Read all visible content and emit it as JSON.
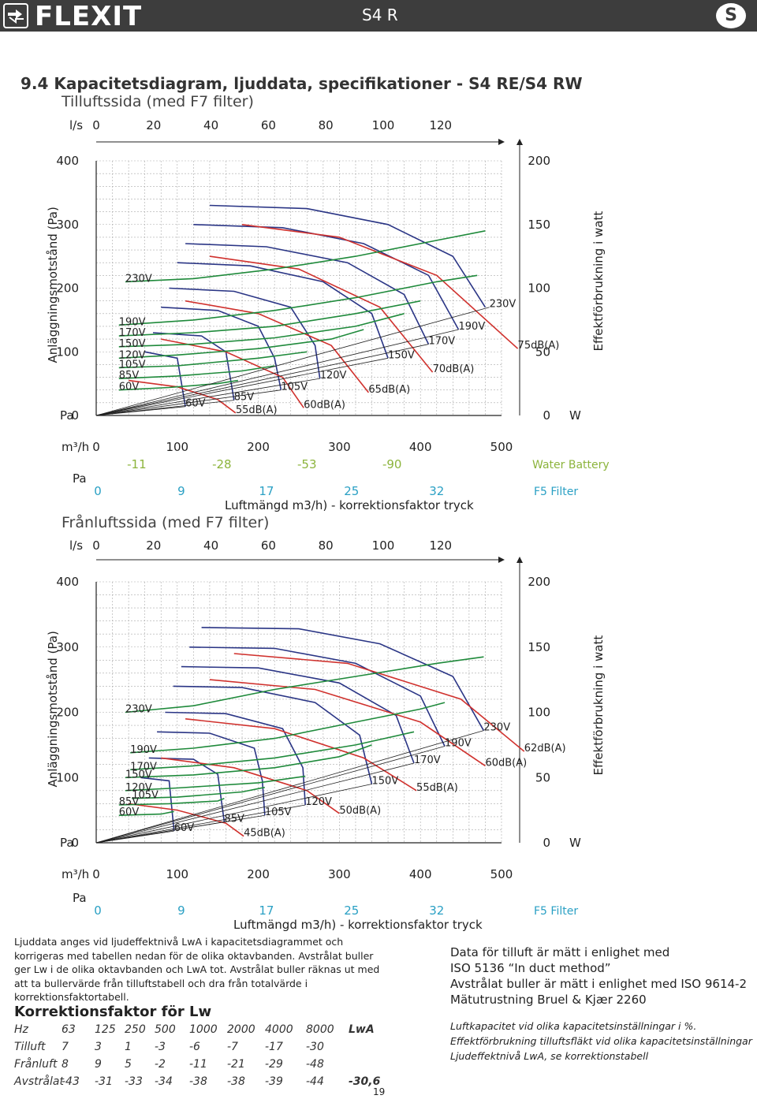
{
  "header": {
    "logo_text": "FLEXIT",
    "doc_title": "S4 R",
    "badge": "S"
  },
  "section_title": "9.4  Kapacitetsdiagram, ljuddata, specifikationer - S4 RE/S4 RW",
  "colors": {
    "voltage_curve": "#1f8a3b",
    "sound_curve": "#d0312d",
    "fan_curve": "#2a3585",
    "water_battery": "#8cb43c",
    "filter": "#2aa0c4",
    "header_bg": "#3d3d3d"
  },
  "chart_data": [
    {
      "type": "line",
      "title": "Tilluftssida (med F7 filter)",
      "ylabel": "Anläggningsmotstånd (Pa)",
      "y2label": "Effektförbrukning i watt",
      "xlabel": "Luftmängd m3/h) - korrektionsfaktor tryck",
      "x_unit": "m³/h",
      "x_ticks": [
        "0",
        "100",
        "200",
        "300",
        "400",
        "500"
      ],
      "x2_unit": "l/s",
      "x2_ticks": [
        "0",
        "20",
        "40",
        "60",
        "80",
        "100",
        "120"
      ],
      "y_unit": "Pa",
      "y_ticks": [
        "0",
        "100",
        "200",
        "300",
        "400"
      ],
      "y2_unit": "W",
      "y2_ticks": [
        "0",
        "50",
        "100",
        "150",
        "200"
      ],
      "xlim": [
        0,
        500
      ],
      "ylim": [
        0,
        400
      ],
      "voltage_labels": [
        {
          "text": "230V",
          "x": 36,
          "y": 210
        },
        {
          "text": "190V",
          "x": 28,
          "y": 142
        },
        {
          "text": "170V",
          "x": 28,
          "y": 125
        },
        {
          "text": "150V",
          "x": 28,
          "y": 108
        },
        {
          "text": "120V",
          "x": 28,
          "y": 90
        },
        {
          "text": "105V",
          "x": 28,
          "y": 75
        },
        {
          "text": "85V",
          "x": 28,
          "y": 58
        },
        {
          "text": "60V",
          "x": 28,
          "y": 40
        },
        {
          "text": "60V",
          "x": 110,
          "y": 14
        },
        {
          "text": "85V",
          "x": 170,
          "y": 24
        },
        {
          "text": "105V",
          "x": 228,
          "y": 40
        },
        {
          "text": "120V",
          "x": 276,
          "y": 58
        },
        {
          "text": "150V",
          "x": 360,
          "y": 90
        },
        {
          "text": "170V",
          "x": 410,
          "y": 112
        },
        {
          "text": "190V",
          "x": 447,
          "y": 135
        },
        {
          "text": "230V",
          "x": 485,
          "y": 170
        }
      ],
      "sound_labels": [
        {
          "text": "55dB(A)",
          "x": 172,
          "y": 4
        },
        {
          "text": "60dB(A)",
          "x": 256,
          "y": 12
        },
        {
          "text": "65dB(A)",
          "x": 336,
          "y": 36
        },
        {
          "text": "70dB(A)",
          "x": 415,
          "y": 68
        },
        {
          "text": "75dB(A)",
          "x": 520,
          "y": 105
        }
      ],
      "voltage_curves": [
        {
          "name": "230V",
          "x": [
            36,
            120,
            220,
            320,
            420,
            480
          ],
          "y": [
            210,
            215,
            230,
            250,
            275,
            290
          ]
        },
        {
          "name": "190V",
          "x": [
            28,
            120,
            220,
            320,
            420,
            470
          ],
          "y": [
            142,
            150,
            165,
            185,
            210,
            220
          ]
        },
        {
          "name": "170V",
          "x": [
            28,
            120,
            220,
            320,
            400
          ],
          "y": [
            125,
            130,
            140,
            160,
            180
          ]
        },
        {
          "name": "150V",
          "x": [
            28,
            120,
            220,
            320,
            380
          ],
          "y": [
            108,
            112,
            122,
            140,
            160
          ]
        },
        {
          "name": "120V",
          "x": [
            28,
            100,
            200,
            290,
            330
          ],
          "y": [
            90,
            95,
            105,
            120,
            135
          ]
        },
        {
          "name": "105V",
          "x": [
            28,
            100,
            200,
            260
          ],
          "y": [
            75,
            78,
            90,
            100
          ]
        },
        {
          "name": "85V",
          "x": [
            28,
            100,
            180,
            220
          ],
          "y": [
            58,
            62,
            70,
            78
          ]
        },
        {
          "name": "60V",
          "x": [
            28,
            90,
            150,
            175
          ],
          "y": [
            40,
            44,
            50,
            55
          ]
        }
      ],
      "fan_curves": [
        {
          "name": "230V",
          "x": [
            140,
            260,
            360,
            440,
            480
          ],
          "y": [
            330,
            325,
            300,
            250,
            170
          ]
        },
        {
          "name": "190V",
          "x": [
            120,
            230,
            330,
            410,
            447
          ],
          "y": [
            300,
            295,
            270,
            220,
            135
          ]
        },
        {
          "name": "170V",
          "x": [
            110,
            210,
            310,
            380,
            410
          ],
          "y": [
            270,
            265,
            240,
            190,
            112
          ]
        },
        {
          "name": "150V",
          "x": [
            100,
            190,
            280,
            340,
            360
          ],
          "y": [
            240,
            235,
            210,
            160,
            90
          ]
        },
        {
          "name": "120V",
          "x": [
            90,
            170,
            240,
            270,
            276
          ],
          "y": [
            200,
            195,
            170,
            110,
            58
          ]
        },
        {
          "name": "105V",
          "x": [
            80,
            150,
            200,
            220,
            228
          ],
          "y": [
            170,
            165,
            140,
            90,
            40
          ]
        },
        {
          "name": "85V",
          "x": [
            70,
            130,
            160,
            170
          ],
          "y": [
            130,
            125,
            100,
            24
          ]
        },
        {
          "name": "60V",
          "x": [
            60,
            100,
            110
          ],
          "y": [
            100,
            90,
            14
          ]
        }
      ],
      "sound_curves": [
        {
          "name": "55dB(A)",
          "x": [
            40,
            100,
            150,
            172
          ],
          "y": [
            55,
            45,
            25,
            4
          ]
        },
        {
          "name": "60dB(A)",
          "x": [
            80,
            160,
            230,
            256
          ],
          "y": [
            120,
            100,
            60,
            12
          ]
        },
        {
          "name": "65dB(A)",
          "x": [
            110,
            200,
            290,
            336
          ],
          "y": [
            180,
            160,
            110,
            36
          ]
        },
        {
          "name": "70dB(A)",
          "x": [
            140,
            250,
            350,
            415
          ],
          "y": [
            250,
            230,
            170,
            68
          ]
        },
        {
          "name": "75dB(A)",
          "x": [
            180,
            300,
            420,
            520
          ],
          "y": [
            300,
            280,
            220,
            105
          ]
        }
      ],
      "correction": {
        "water_battery_label": "Water Battery",
        "water_battery": [
          "-11",
          "-28",
          "-53",
          "-90"
        ],
        "filter_unit": "Pa",
        "filter_label": "F5 Filter",
        "filter": [
          "0",
          "9",
          "17",
          "25",
          "32"
        ]
      }
    },
    {
      "type": "line",
      "title": "Frånluftssida (med F7 filter)",
      "ylabel": "Anläggningsmotstånd (Pa)",
      "y2label": "Effektförbrukning i watt",
      "xlabel": "Luftmängd m3/h) - korrektionsfaktor tryck",
      "x_unit": "m³/h",
      "x_ticks": [
        "0",
        "100",
        "200",
        "300",
        "400",
        "500"
      ],
      "x2_unit": "l/s",
      "x2_ticks": [
        "0",
        "20",
        "40",
        "60",
        "80",
        "100",
        "120"
      ],
      "y_unit": "Pa",
      "y_ticks": [
        "0",
        "100",
        "200",
        "300",
        "400"
      ],
      "y2_unit": "W",
      "y2_ticks": [
        "0",
        "50",
        "100",
        "150",
        "200"
      ],
      "xlim": [
        0,
        500
      ],
      "ylim": [
        0,
        400
      ],
      "voltage_labels": [
        {
          "text": "230V",
          "x": 36,
          "y": 200
        },
        {
          "text": "190V",
          "x": 42,
          "y": 138
        },
        {
          "text": "170V",
          "x": 42,
          "y": 112
        },
        {
          "text": "150V",
          "x": 36,
          "y": 100
        },
        {
          "text": "120V",
          "x": 36,
          "y": 80
        },
        {
          "text": "105V",
          "x": 44,
          "y": 68
        },
        {
          "text": "85V",
          "x": 28,
          "y": 58
        },
        {
          "text": "60V",
          "x": 28,
          "y": 42
        },
        {
          "text": "60V",
          "x": 96,
          "y": 18
        },
        {
          "text": "85V",
          "x": 158,
          "y": 32
        },
        {
          "text": "105V",
          "x": 208,
          "y": 42
        },
        {
          "text": "120V",
          "x": 258,
          "y": 58
        },
        {
          "text": "150V",
          "x": 340,
          "y": 90
        },
        {
          "text": "170V",
          "x": 392,
          "y": 122
        },
        {
          "text": "190V",
          "x": 430,
          "y": 148
        },
        {
          "text": "230V",
          "x": 478,
          "y": 172
        }
      ],
      "sound_labels": [
        {
          "text": "45dB(A)",
          "x": 182,
          "y": 10
        },
        {
          "text": "50dB(A)",
          "x": 300,
          "y": 45
        },
        {
          "text": "55dB(A)",
          "x": 395,
          "y": 80
        },
        {
          "text": "60dB(A)",
          "x": 480,
          "y": 118
        },
        {
          "text": "62dB(A)",
          "x": 528,
          "y": 140
        }
      ],
      "voltage_curves": [
        {
          "name": "230V",
          "x": [
            36,
            120,
            220,
            320,
            420,
            478
          ],
          "y": [
            200,
            210,
            235,
            255,
            275,
            285
          ]
        },
        {
          "name": "190V",
          "x": [
            42,
            120,
            220,
            320,
            400,
            430
          ],
          "y": [
            138,
            145,
            160,
            185,
            205,
            215
          ]
        },
        {
          "name": "170V",
          "x": [
            42,
            120,
            220,
            320,
            392
          ],
          "y": [
            112,
            118,
            130,
            150,
            170
          ]
        },
        {
          "name": "150V",
          "x": [
            36,
            120,
            220,
            300,
            340
          ],
          "y": [
            100,
            104,
            115,
            132,
            150
          ]
        },
        {
          "name": "120V",
          "x": [
            36,
            100,
            200,
            258
          ],
          "y": [
            80,
            84,
            92,
            102
          ]
        },
        {
          "name": "105V",
          "x": [
            44,
            100,
            180,
            208
          ],
          "y": [
            68,
            70,
            78,
            85
          ]
        },
        {
          "name": "85V",
          "x": [
            28,
            90,
            150,
            158
          ],
          "y": [
            58,
            60,
            64,
            68
          ]
        },
        {
          "name": "60V",
          "x": [
            28,
            80,
            96
          ],
          "y": [
            42,
            44,
            48
          ]
        }
      ],
      "fan_curves": [
        {
          "name": "230V",
          "x": [
            130,
            250,
            350,
            440,
            478
          ],
          "y": [
            330,
            328,
            305,
            255,
            172
          ]
        },
        {
          "name": "190V",
          "x": [
            115,
            220,
            320,
            400,
            430
          ],
          "y": [
            300,
            298,
            275,
            225,
            148
          ]
        },
        {
          "name": "170V",
          "x": [
            105,
            200,
            300,
            370,
            392
          ],
          "y": [
            270,
            268,
            245,
            195,
            122
          ]
        },
        {
          "name": "150V",
          "x": [
            95,
            180,
            270,
            325,
            340
          ],
          "y": [
            240,
            238,
            215,
            165,
            90
          ]
        },
        {
          "name": "120V",
          "x": [
            85,
            160,
            230,
            255,
            258
          ],
          "y": [
            200,
            198,
            175,
            115,
            58
          ]
        },
        {
          "name": "105V",
          "x": [
            75,
            140,
            195,
            205,
            208
          ],
          "y": [
            170,
            168,
            145,
            95,
            42
          ]
        },
        {
          "name": "85V",
          "x": [
            65,
            120,
            150,
            158
          ],
          "y": [
            130,
            128,
            105,
            32
          ]
        },
        {
          "name": "60V",
          "x": [
            55,
            90,
            96
          ],
          "y": [
            100,
            95,
            18
          ]
        }
      ],
      "sound_curves": [
        {
          "name": "45dB(A)",
          "x": [
            40,
            100,
            160,
            182
          ],
          "y": [
            60,
            50,
            30,
            10
          ]
        },
        {
          "name": "50dB(A)",
          "x": [
            80,
            170,
            260,
            300
          ],
          "y": [
            130,
            115,
            80,
            45
          ]
        },
        {
          "name": "55dB(A)",
          "x": [
            110,
            220,
            330,
            395
          ],
          "y": [
            190,
            175,
            130,
            80
          ]
        },
        {
          "name": "60dB(A)",
          "x": [
            140,
            270,
            400,
            480
          ],
          "y": [
            250,
            235,
            185,
            118
          ]
        },
        {
          "name": "62dB(A)",
          "x": [
            170,
            310,
            450,
            528
          ],
          "y": [
            290,
            275,
            220,
            140
          ]
        }
      ],
      "correction": {
        "filter_unit": "Pa",
        "filter_label": "F5 Filter",
        "filter": [
          "0",
          "9",
          "17",
          "25",
          "32"
        ]
      }
    }
  ],
  "sound_info": "Ljuddata anges vid ljudeffektnivå LwA i kapacitetsdiagrammet och korrigeras med tabellen nedan för de olika oktavbanden. Avstrålat buller ger Lw i de olika oktavbanden och LwA tot. Avstrålat buller räknas ut med att ta bullervärde från tilluftstabell och dra från totalvärde i korrektionsfaktortabell.",
  "correction_table": {
    "title": "Korrektionsfaktor för Lw",
    "header": [
      "Hz",
      "63",
      "125",
      "250",
      "500",
      "1000",
      "2000",
      "4000",
      "8000",
      "LwA"
    ],
    "rows": [
      [
        "Tilluft",
        "7",
        "3",
        "1",
        "-3",
        "-6",
        "-7",
        "-17",
        "-30",
        ""
      ],
      [
        "Frånluft",
        "8",
        "9",
        "5",
        "-2",
        "-11",
        "-21",
        "-29",
        "-48",
        ""
      ],
      [
        "Avstrålat",
        "-43",
        "-31",
        "-33",
        "-34",
        "-38",
        "-38",
        "-39",
        "-44",
        "-30,6"
      ]
    ]
  },
  "specs": [
    "Data för tilluft är mätt i enlighet med",
    "ISO 5136 “In duct method”",
    "Avstrålat buller är mätt i enlighet med ISO 9614-2",
    "Mätutrustning Bruel & Kjær 2260"
  ],
  "notes": [
    "Luftkapacitet vid olika kapacitetsinställningar i %.",
    "Effektförbrukning tilluftsfläkt vid olika kapacitetsinställningar",
    "Ljudeffektnivå LwA, se korrektionstabell"
  ],
  "page_number": "19"
}
